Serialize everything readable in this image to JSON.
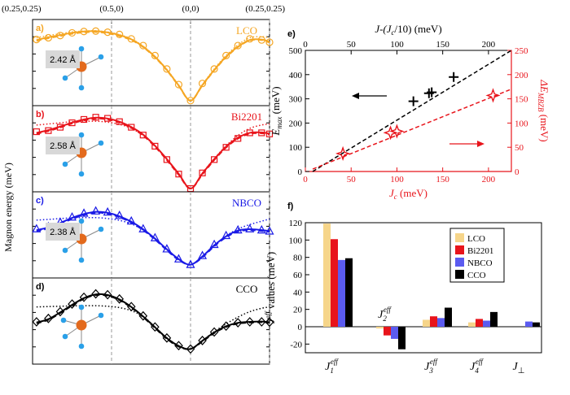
{
  "chart_data": [
    {
      "type": "line",
      "panels_shared": {
        "ylabel": "Magnon energy (meV)",
        "xtick_labels": [
          "(0.25,0.25)",
          "(0.5,0)",
          "(0,0)",
          "(0.25,0.25)"
        ],
        "x_path_positions": [
          0,
          1,
          2,
          3
        ]
      },
      "panels": [
        {
          "letter": "a)",
          "name": "LCO",
          "color": "#F5A623",
          "marker": "circle",
          "bond_length": "2.42 Å",
          "ylim": [
            0,
            350
          ],
          "x": [
            0.05,
            0.2,
            0.35,
            0.5,
            0.65,
            0.8,
            0.95,
            1.1,
            1.25,
            1.4,
            1.55,
            1.7,
            1.85,
            2.0,
            2.15,
            2.3,
            2.45,
            2.6,
            2.75,
            2.9,
            3.0
          ],
          "data_y": [
            282,
            290,
            300,
            312,
            318,
            320,
            315,
            305,
            285,
            255,
            210,
            150,
            80,
            8,
            85,
            150,
            210,
            255,
            285,
            280,
            270
          ],
          "fit_solid": [
            280,
            292,
            302,
            312,
            318,
            320,
            314,
            302,
            283,
            250,
            205,
            146,
            76,
            8,
            78,
            146,
            205,
            250,
            280,
            282,
            272
          ],
          "fit_dashed": [
            276,
            288,
            298,
            308,
            314,
            316,
            310,
            298,
            280,
            248,
            202,
            144,
            74,
            8,
            76,
            144,
            202,
            248,
            278,
            280,
            268
          ],
          "fit_dotted": [
            290,
            300,
            308,
            316,
            320,
            321,
            316,
            304,
            285,
            252,
            206,
            148,
            78,
            10,
            80,
            150,
            210,
            258,
            290,
            295,
            290
          ]
        },
        {
          "letter": "b)",
          "name": "Bi2201",
          "color": "#E8141B",
          "marker": "square",
          "bond_length": "2.58 Å",
          "ylim": [
            0,
            350
          ],
          "x": [
            0.05,
            0.2,
            0.35,
            0.5,
            0.65,
            0.8,
            0.95,
            1.1,
            1.25,
            1.4,
            1.55,
            1.7,
            1.85,
            2.0,
            2.15,
            2.3,
            2.45,
            2.6,
            2.75,
            2.9,
            3.0
          ],
          "data_y": [
            255,
            260,
            275,
            295,
            310,
            320,
            315,
            300,
            275,
            240,
            190,
            130,
            65,
            0,
            70,
            130,
            185,
            225,
            250,
            250,
            245
          ],
          "fit_solid": [
            250,
            262,
            278,
            296,
            310,
            318,
            314,
            300,
            276,
            242,
            192,
            132,
            66,
            0,
            68,
            132,
            188,
            228,
            250,
            252,
            246
          ],
          "fit_dashed": [
            246,
            258,
            274,
            292,
            306,
            314,
            310,
            296,
            272,
            238,
            188,
            128,
            62,
            0,
            64,
            128,
            184,
            224,
            246,
            248,
            242
          ],
          "fit_dotted": [
            285,
            290,
            295,
            300,
            302,
            302,
            298,
            288,
            270,
            238,
            190,
            132,
            68,
            0,
            70,
            134,
            192,
            238,
            270,
            285,
            290
          ]
        },
        {
          "letter": "c)",
          "name": "NBCO",
          "color": "#1A1AE6",
          "marker": "triangle",
          "bond_length": "2.38 Å",
          "ylim": [
            0,
            350
          ],
          "x": [
            0.05,
            0.2,
            0.35,
            0.5,
            0.65,
            0.8,
            0.95,
            1.1,
            1.25,
            1.4,
            1.55,
            1.7,
            1.85,
            2.0,
            2.15,
            2.3,
            2.45,
            2.6,
            2.75,
            2.9,
            3.0
          ],
          "data_y": [
            205,
            215,
            235,
            258,
            275,
            285,
            280,
            265,
            240,
            205,
            165,
            115,
            70,
            45,
            85,
            135,
            175,
            200,
            205,
            200,
            195
          ],
          "fit_solid": [
            200,
            212,
            232,
            255,
            272,
            282,
            278,
            262,
            238,
            204,
            162,
            114,
            70,
            45,
            82,
            132,
            172,
            198,
            204,
            200,
            196
          ],
          "fit_dashed": [
            196,
            208,
            228,
            250,
            268,
            278,
            274,
            258,
            234,
            200,
            158,
            110,
            66,
            45,
            78,
            128,
            168,
            194,
            200,
            196,
            192
          ],
          "fit_dotted": [
            245,
            248,
            252,
            255,
            256,
            256,
            252,
            244,
            228,
            200,
            160,
            112,
            68,
            45,
            80,
            130,
            174,
            205,
            225,
            240,
            250
          ]
        },
        {
          "letter": "d)",
          "name": "CCO",
          "color": "#000000",
          "marker": "diamond",
          "bond_length": "",
          "ylim": [
            0,
            460
          ],
          "x": [
            0.05,
            0.2,
            0.35,
            0.5,
            0.65,
            0.8,
            0.95,
            1.1,
            1.25,
            1.4,
            1.55,
            1.7,
            1.85,
            2.0,
            2.15,
            2.3,
            2.45,
            2.6,
            2.75,
            2.9,
            3.0
          ],
          "data_y": [
            230,
            250,
            290,
            335,
            375,
            395,
            390,
            365,
            320,
            265,
            200,
            135,
            90,
            70,
            120,
            170,
            205,
            225,
            230,
            230,
            228
          ],
          "fit_solid": [
            226,
            246,
            286,
            330,
            370,
            392,
            388,
            362,
            318,
            262,
            198,
            134,
            88,
            70,
            118,
            168,
            204,
            224,
            230,
            232,
            228
          ],
          "fit_dashed": [
            222,
            242,
            282,
            326,
            366,
            388,
            384,
            358,
            314,
            258,
            194,
            130,
            84,
            70,
            114,
            164,
            200,
            220,
            226,
            228,
            224
          ],
          "fit_dotted": [
            318,
            320,
            322,
            324,
            325,
            325,
            322,
            314,
            296,
            262,
            200,
            136,
            90,
            70,
            120,
            172,
            218,
            258,
            290,
            310,
            318
          ]
        }
      ]
    },
    {
      "type": "scatter",
      "letter": "e)",
      "xlabel": "J",
      "xlabel_sub": "c",
      "xlabel_unit": "(meV)",
      "top_xlabel": "J-(J",
      "top_xlabel_sub": "c",
      "top_xlabel_tail": "/10) (meV)",
      "ylabel_left": "E",
      "ylabel_left_sub": "max",
      "ylabel_left_unit": "(meV)",
      "ylabel_right": "ΔE",
      "ylabel_right_sub": "MBZB",
      "ylabel_right_unit": "(meV)",
      "xlim": [
        0,
        225
      ],
      "ylim_left": [
        0,
        500
      ],
      "ylim_right": [
        0,
        250
      ],
      "xticks": [
        0,
        50,
        100,
        150,
        200
      ],
      "top_xticks": [
        0,
        50,
        100,
        150,
        200
      ],
      "yticks_left": [
        0,
        100,
        200,
        300,
        400,
        500
      ],
      "yticks_right": [
        0,
        50,
        100,
        150,
        200,
        250
      ],
      "series": [
        {
          "color": "#000000",
          "marker": "plus",
          "axis": "left",
          "x": [
            118,
            135,
            138,
            162
          ],
          "y": [
            290,
            323,
            327,
            390
          ]
        },
        {
          "color": "#E8141B",
          "marker": "star",
          "axis": "right",
          "x": [
            41,
            93,
            100,
            205
          ],
          "y": [
            37,
            80,
            83,
            157
          ]
        }
      ],
      "trend_left": [
        [
          8,
          0
        ],
        [
          225,
          525
        ]
      ],
      "trend_right": [
        [
          8,
          5
        ],
        [
          225,
          170
        ]
      ]
    },
    {
      "type": "bar",
      "letter": "f)",
      "ylabel": "J",
      "ylabel_sup": "eff",
      "ylabel_tail": " values (meV)",
      "ylim": [
        -30,
        120
      ],
      "yticks": [
        -20,
        0,
        20,
        40,
        60,
        80,
        100,
        120
      ],
      "categories": [
        {
          "main": "J",
          "sub": "1",
          "sup": "eff"
        },
        {
          "main": "J",
          "sub": "2",
          "sup": "eff"
        },
        {
          "main": "J",
          "sub": "3",
          "sup": "eff"
        },
        {
          "main": "J",
          "sub": "4",
          "sup": "eff"
        },
        {
          "main": "J",
          "sub": "⊥",
          "sup": ""
        }
      ],
      "series": [
        {
          "name": "LCO",
          "color": "#F6D58A",
          "values": [
            119,
            -2,
            8,
            5,
            0
          ]
        },
        {
          "name": "Bi2201",
          "color": "#E8141B",
          "values": [
            101,
            -10,
            12,
            9,
            0
          ]
        },
        {
          "name": "NBCO",
          "color": "#5B5BF0",
          "values": [
            77,
            -14,
            10,
            7,
            6
          ]
        },
        {
          "name": "CCO",
          "color": "#000000",
          "values": [
            79,
            -26,
            22,
            17,
            5
          ]
        }
      ]
    }
  ],
  "colors": {
    "LCO": "#F5A623",
    "Bi2201": "#E8141B",
    "NBCO": "#1A1AE6",
    "CCO": "#000000",
    "copper": "#E36A1D",
    "oxygen": "#2AA0E8",
    "bond_box": "#D8D8D8"
  }
}
